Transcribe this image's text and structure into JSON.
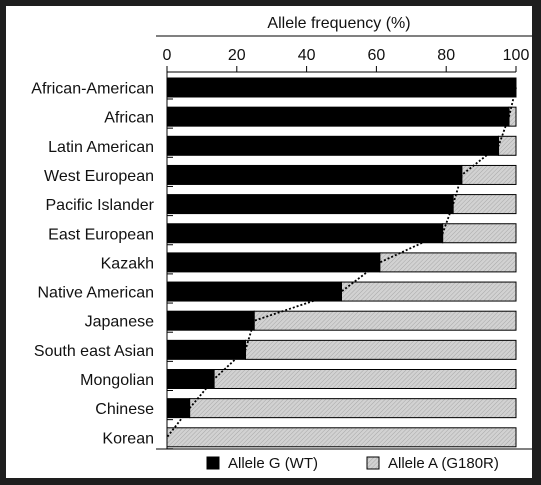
{
  "chart_data": {
    "type": "bar",
    "stacked": true,
    "orientation": "horizontal",
    "title": "Allele frequency (%)",
    "xlim": [
      0,
      100
    ],
    "xticks": [
      0,
      20,
      40,
      60,
      80,
      100
    ],
    "grid": false,
    "categories": [
      "African-American",
      "African",
      "Latin American",
      "West European",
      "Pacific Islander",
      "East European",
      "Kazakh",
      "Native American",
      "Japanese",
      "South east Asian",
      "Mongolian",
      "Chinese",
      "Korean"
    ],
    "series": [
      {
        "name": "Allele G (WT)",
        "color": "#000000",
        "values": [
          100,
          98,
          95,
          84.5,
          82,
          79,
          61,
          50,
          25,
          22.5,
          13.5,
          6.5,
          0
        ]
      },
      {
        "name": "Allele A (G180R)",
        "color": "#cccccc",
        "values": [
          0,
          2,
          5,
          15.5,
          18,
          21,
          39,
          50,
          75,
          77.5,
          86.5,
          93.5,
          100
        ]
      }
    ],
    "legend_position": "bottom"
  }
}
